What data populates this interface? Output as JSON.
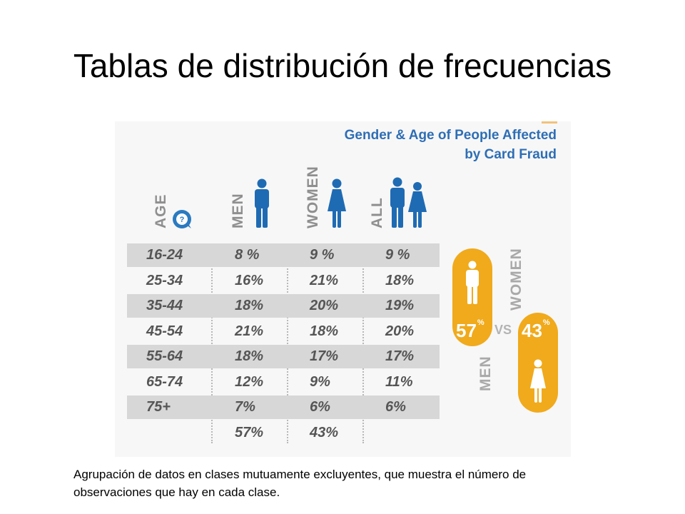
{
  "slide": {
    "title": "Tablas de distribución de frecuencias",
    "caption": "Agrupación de datos en clases mutuamente excluyentes, que muestra el número de observaciones que hay en cada clase."
  },
  "colors": {
    "title_blue": "#2e6eb5",
    "icon_blue": "#1f6bb3",
    "accent_orange": "#f0aa1b",
    "header_gray": "#8f8f8f",
    "stripe_gray": "#d7d7d7",
    "value_gray": "#555555"
  },
  "icons": {
    "age": "question-circle-icon",
    "men": "man-icon",
    "women": "woman-icon",
    "all": "man-and-woman-icon"
  },
  "chart_data": {
    "type": "table",
    "title_line1": "Gender & Age of People Affected",
    "title_line2": "by Card Fraud",
    "columns": [
      "AGE",
      "MEN",
      "WOMEN",
      "ALL"
    ],
    "rows": [
      [
        "16-24",
        "8 %",
        "9 %",
        "9 %"
      ],
      [
        "25-34",
        "16%",
        "21%",
        "18%"
      ],
      [
        "35-44",
        "18%",
        "20%",
        "19%"
      ],
      [
        "45-54",
        "21%",
        "18%",
        "20%"
      ],
      [
        "55-64",
        "18%",
        "17%",
        "17%"
      ],
      [
        "65-74",
        "12%",
        "9%",
        "11%"
      ],
      [
        "75+",
        "7%",
        "6%",
        "6%"
      ]
    ],
    "totals": [
      "",
      "57%",
      "43%",
      ""
    ],
    "comparison": {
      "men_label": "MEN",
      "women_label": "WOMEN",
      "men_value": "57",
      "women_value": "43",
      "unit": "%",
      "vs_label": "VS"
    }
  }
}
